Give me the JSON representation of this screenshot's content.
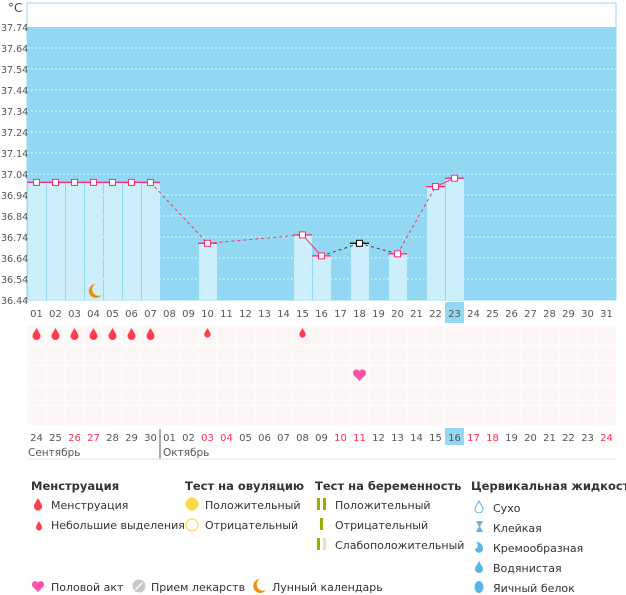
{
  "unit": "°C",
  "chart_data": {
    "type": "line",
    "ylim": [
      36.44,
      37.74
    ],
    "yticks": [
      "37.74",
      "37.64",
      "37.54",
      "37.44",
      "37.34",
      "37.24",
      "37.14",
      "37.04",
      "36.94",
      "36.84",
      "36.74",
      "36.64",
      "36.54",
      "36.44"
    ],
    "days": [
      "01",
      "02",
      "03",
      "04",
      "05",
      "06",
      "07",
      "08",
      "09",
      "10",
      "11",
      "12",
      "13",
      "14",
      "15",
      "16",
      "17",
      "18",
      "19",
      "20",
      "21",
      "22",
      "23",
      "24",
      "25",
      "26",
      "27",
      "28",
      "29",
      "30",
      "31"
    ],
    "temps": [
      {
        "day": 1,
        "t": 37.0
      },
      {
        "day": 2,
        "t": 37.0
      },
      {
        "day": 3,
        "t": 37.0
      },
      {
        "day": 4,
        "t": 37.0
      },
      {
        "day": 5,
        "t": 37.0
      },
      {
        "day": 6,
        "t": 37.0
      },
      {
        "day": 7,
        "t": 37.0
      },
      {
        "day": 10,
        "t": 36.71
      },
      {
        "day": 15,
        "t": 36.75
      },
      {
        "day": 16,
        "t": 36.65
      },
      {
        "day": 18,
        "t": 36.71,
        "excluded": true
      },
      {
        "day": 20,
        "t": 36.66
      },
      {
        "day": 22,
        "t": 36.98
      },
      {
        "day": 23,
        "t": 37.02
      }
    ],
    "highlight_day": 23,
    "moon_days": [
      4
    ],
    "menstruation_days": [
      1,
      2,
      3,
      4,
      5,
      6,
      7
    ],
    "spotting_days": [
      10,
      15
    ],
    "intercourse_days": [
      18
    ]
  },
  "calendar": {
    "dates": [
      "24",
      "25",
      "26",
      "27",
      "28",
      "29",
      "30",
      "01",
      "02",
      "03",
      "04",
      "05",
      "06",
      "07",
      "08",
      "09",
      "10",
      "11",
      "12",
      "13",
      "14",
      "15",
      "16",
      "17",
      "18",
      "19",
      "20",
      "21",
      "22",
      "23",
      "24"
    ],
    "red": [
      2,
      3,
      9,
      10,
      16,
      17,
      23,
      24,
      30
    ],
    "highlight": 22,
    "month1": "Сентябрь",
    "month2": "Октябрь"
  },
  "legend": {
    "menstruation": {
      "title": "Менструация",
      "items": [
        "Менструация",
        "Небольшие выделения"
      ]
    },
    "ovulation": {
      "title": "Тест на овуляцию",
      "items": [
        "Положительный",
        "Отрицательный"
      ]
    },
    "pregnancy": {
      "title": "Тест на беременность",
      "items": [
        "Положительный",
        "Отрицательный",
        "Слабоположительный"
      ]
    },
    "cervical": {
      "title": "Цервикальная жидкость",
      "items": [
        "Сухо",
        "Клейкая",
        "Кремообразная",
        "Водянистая",
        "Яичный белок"
      ]
    },
    "other": [
      "Половой акт",
      "Прием лекарств",
      "Лунный календарь"
    ]
  },
  "colors": {
    "bg": "#93d8f2",
    "bar": "#cdeefb",
    "line": "#ff2d6f",
    "red": "#ff3b4e",
    "pink": "#ff55aa",
    "moon": "#f0900a",
    "green": "#8fb400"
  }
}
